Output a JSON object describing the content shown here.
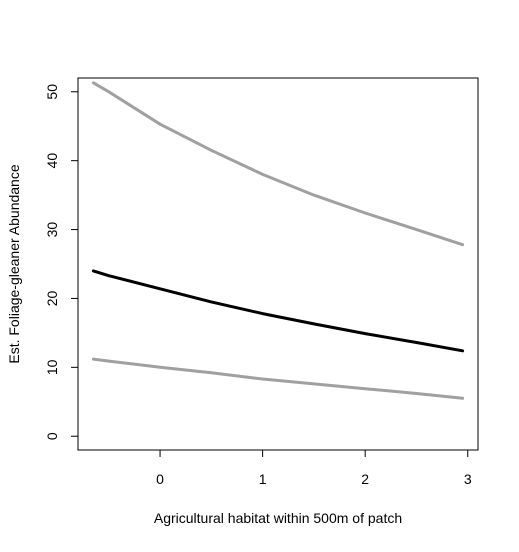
{
  "chart_data": {
    "type": "line",
    "title": "",
    "xlabel": "Agricultural habitat within 500m of patch",
    "ylabel": "Est. Foliage-gleaner Abundance",
    "xlim": [
      -0.8,
      3.1
    ],
    "ylim": [
      -2,
      52
    ],
    "xticks": [
      0,
      1,
      2,
      3
    ],
    "yticks": [
      0,
      10,
      20,
      30,
      40,
      50
    ],
    "grid": false,
    "legend": "none",
    "x": [
      -0.65,
      -0.5,
      0,
      0.5,
      1,
      1.5,
      2,
      2.5,
      2.95
    ],
    "series": [
      {
        "values": [
          51.3,
          50.0,
          45.3,
          41.5,
          38.0,
          35.0,
          32.4,
          30.0,
          27.8
        ],
        "color": "#a0a0a0"
      },
      {
        "values": [
          24.0,
          23.3,
          21.4,
          19.5,
          17.8,
          16.3,
          14.9,
          13.6,
          12.4
        ],
        "color": "#000000"
      },
      {
        "values": [
          11.2,
          10.9,
          10.0,
          9.2,
          8.3,
          7.6,
          6.9,
          6.2,
          5.5
        ],
        "color": "#a0a0a0"
      }
    ]
  }
}
